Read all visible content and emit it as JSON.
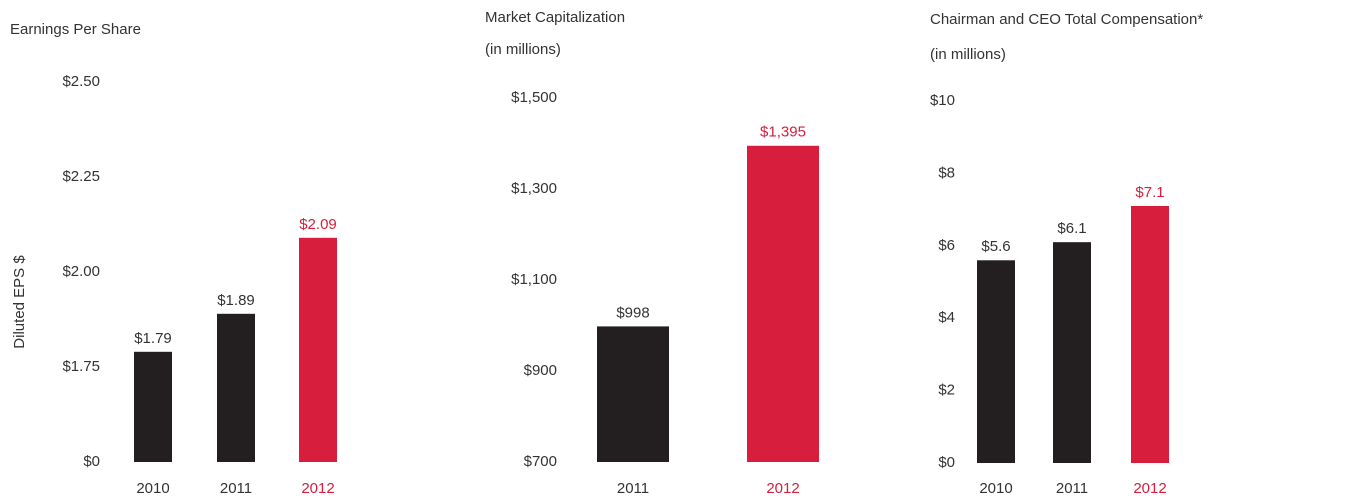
{
  "chart_data": [
    {
      "type": "bar",
      "title": "Earnings Per Share",
      "ylabel": "Diluted EPS $",
      "categories": [
        "2010",
        "2011",
        "2012"
      ],
      "values": [
        1.79,
        1.89,
        2.09
      ],
      "value_labels": [
        "$1.79",
        "$1.89",
        "$2.09"
      ],
      "colors": [
        "#231f20",
        "#231f20",
        "#d71e3c"
      ],
      "ylim": [
        0,
        2.5
      ],
      "yticks": [
        {
          "value": 0,
          "label": "$0"
        },
        {
          "value": 1.75,
          "label": "$1.75"
        },
        {
          "value": 2.0,
          "label": "$2.00"
        },
        {
          "value": 2.25,
          "label": "$2.25"
        },
        {
          "value": 2.5,
          "label": "$2.50"
        }
      ]
    },
    {
      "type": "bar",
      "title": "Market Capitalization",
      "subtitle": "(in millions)",
      "categories": [
        "2011",
        "2012"
      ],
      "values": [
        998,
        1395
      ],
      "value_labels": [
        "$998",
        "$1,395"
      ],
      "colors": [
        "#231f20",
        "#d71e3c"
      ],
      "ylim": [
        700,
        1500
      ],
      "yticks": [
        {
          "value": 700,
          "label": "$700"
        },
        {
          "value": 900,
          "label": "$900"
        },
        {
          "value": 1100,
          "label": "$1,100"
        },
        {
          "value": 1300,
          "label": "$1,300"
        },
        {
          "value": 1500,
          "label": "$1,500"
        }
      ]
    },
    {
      "type": "bar",
      "title": "Chairman and CEO Total Compensation*",
      "subtitle": "(in millions)",
      "categories": [
        "2010",
        "2011",
        "2012"
      ],
      "values": [
        5.6,
        6.1,
        7.1
      ],
      "value_labels": [
        "$5.6",
        "$6.1",
        "$7.1"
      ],
      "colors": [
        "#231f20",
        "#231f20",
        "#d71e3c"
      ],
      "ylim": [
        0,
        10
      ],
      "yticks": [
        {
          "value": 0,
          "label": "$0"
        },
        {
          "value": 2,
          "label": "$2"
        },
        {
          "value": 4,
          "label": "$4"
        },
        {
          "value": 6,
          "label": "$6"
        },
        {
          "value": 8,
          "label": "$8"
        },
        {
          "value": 10,
          "label": "$10"
        }
      ]
    }
  ]
}
